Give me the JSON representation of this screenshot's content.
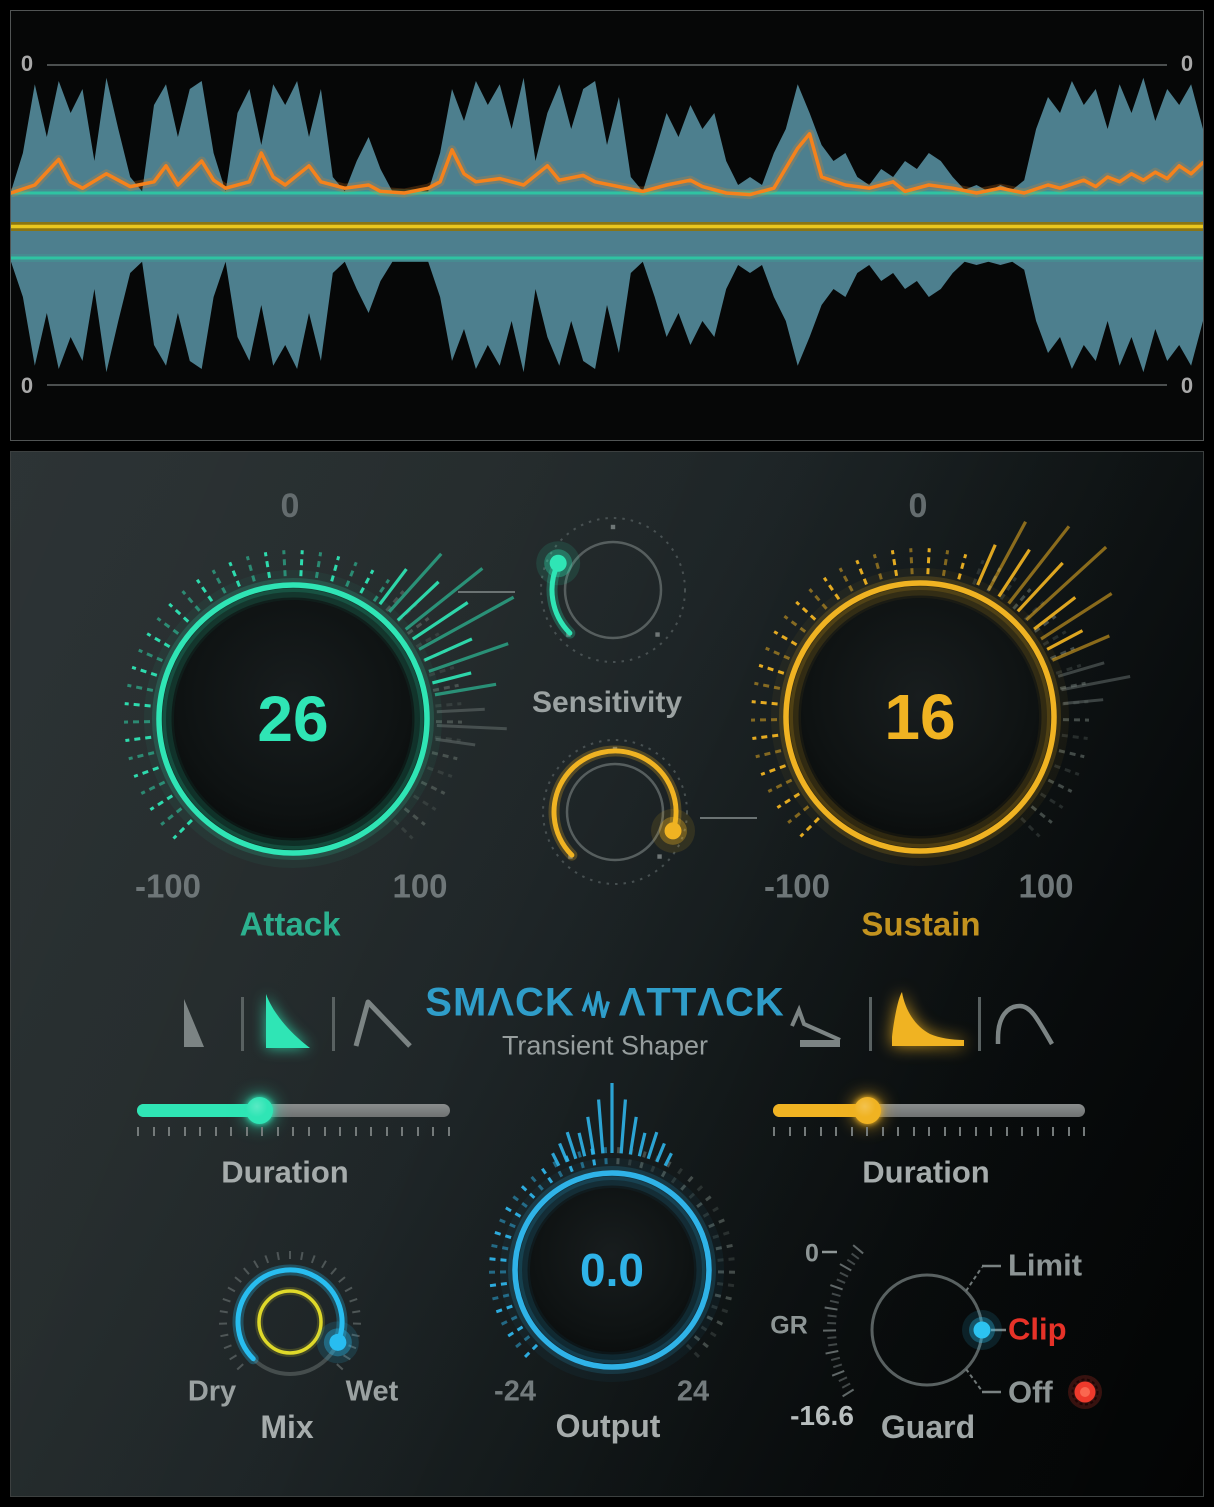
{
  "branding": {
    "title_word1": "SMΛCK",
    "title_word2": "ΛTTΛCK",
    "subtitle": "Transient Shaper",
    "color": "#2f9dc9"
  },
  "waveform": {
    "zero_label": "0",
    "colors": {
      "fill": "#4d7f8e",
      "detector": "#f5821c",
      "threshold": "#2fc3a2",
      "center_line": "#e9c71f",
      "zero_line": "#4b4f4f"
    },
    "threshold_amp": 21,
    "envelope": [
      18,
      45,
      88,
      55,
      90,
      70,
      85,
      40,
      92,
      60,
      30,
      20,
      75,
      88,
      55,
      85,
      90,
      45,
      20,
      70,
      85,
      50,
      88,
      75,
      90,
      55,
      85,
      30,
      18,
      40,
      55,
      35,
      18,
      16,
      16,
      20,
      45,
      85,
      65,
      90,
      75,
      88,
      60,
      92,
      40,
      70,
      88,
      60,
      85,
      90,
      50,
      80,
      30,
      20,
      45,
      70,
      55,
      75,
      60,
      70,
      40,
      25,
      30,
      25,
      45,
      60,
      88,
      70,
      50,
      40,
      45,
      30,
      25,
      35,
      30,
      40,
      35,
      45,
      40,
      30,
      22,
      25,
      20,
      25,
      22,
      28,
      60,
      80,
      70,
      90,
      75,
      85,
      60,
      88,
      70,
      92,
      65,
      85,
      75,
      88,
      60
    ],
    "detector": [
      [
        0,
        20
      ],
      [
        2,
        25
      ],
      [
        4,
        41
      ],
      [
        5,
        27
      ],
      [
        6,
        23
      ],
      [
        8,
        32
      ],
      [
        10,
        24
      ],
      [
        12,
        27
      ],
      [
        13,
        37
      ],
      [
        14,
        25
      ],
      [
        16,
        40
      ],
      [
        17,
        28
      ],
      [
        18,
        23
      ],
      [
        20,
        27
      ],
      [
        21,
        45
      ],
      [
        22,
        30
      ],
      [
        23,
        25
      ],
      [
        25,
        37
      ],
      [
        26,
        27
      ],
      [
        28,
        23
      ],
      [
        30,
        25
      ],
      [
        31,
        21
      ],
      [
        33,
        20
      ],
      [
        35,
        23
      ],
      [
        36,
        27
      ],
      [
        37,
        47
      ],
      [
        38,
        32
      ],
      [
        39,
        27
      ],
      [
        41,
        29
      ],
      [
        43,
        25
      ],
      [
        45,
        37
      ],
      [
        46,
        28
      ],
      [
        48,
        31
      ],
      [
        49,
        27
      ],
      [
        51,
        24
      ],
      [
        53,
        21
      ],
      [
        55,
        25
      ],
      [
        57,
        28
      ],
      [
        58,
        24
      ],
      [
        60,
        20
      ],
      [
        62,
        19
      ],
      [
        64,
        23
      ],
      [
        66,
        48
      ],
      [
        67,
        57
      ],
      [
        68,
        30
      ],
      [
        70,
        25
      ],
      [
        72,
        23
      ],
      [
        74,
        27
      ],
      [
        75,
        21
      ],
      [
        77,
        25
      ],
      [
        79,
        23
      ],
      [
        81,
        20
      ],
      [
        83,
        23
      ],
      [
        85,
        20
      ],
      [
        87,
        25
      ],
      [
        88,
        23
      ],
      [
        90,
        28
      ],
      [
        91,
        24
      ],
      [
        92,
        30
      ],
      [
        93,
        27
      ],
      [
        94,
        32
      ],
      [
        95,
        28
      ],
      [
        96,
        33
      ],
      [
        97,
        29
      ],
      [
        98,
        37
      ],
      [
        99,
        32
      ],
      [
        100,
        39
      ]
    ]
  },
  "controls": {
    "attack": {
      "label": "Attack",
      "value": "26",
      "value_num": 26,
      "min": -100,
      "max": 100,
      "min_label": "-100",
      "max_label": "100",
      "zero_label": "0",
      "accent": "#2fe5b5"
    },
    "sustain": {
      "label": "Sustain",
      "value": "16",
      "value_num": 16,
      "min": -100,
      "max": 100,
      "min_label": "-100",
      "max_label": "100",
      "zero_label": "0",
      "accent": "#f0b322"
    },
    "sensitivity": {
      "label": "Sensitivity",
      "attack_pointer_deg": -64,
      "sustain_pointer_deg": 108
    },
    "attack_shape": {
      "options": [
        "sharp",
        "medium",
        "soft"
      ],
      "selected_index": 1
    },
    "sustain_shape": {
      "options": [
        "linear",
        "exponential",
        "curved"
      ],
      "selected_index": 1
    },
    "attack_duration": {
      "label": "Duration",
      "fraction": 0.39
    },
    "sustain_duration": {
      "label": "Duration",
      "fraction": 0.3
    },
    "mix": {
      "label": "Mix",
      "dry_label": "Dry",
      "wet_label": "Wet",
      "pointer_deg": 113,
      "accent": "#28bdf0",
      "ring_color": "#dfd92a"
    },
    "output": {
      "label": "Output",
      "value": "0.0",
      "value_num": 0,
      "min": -24,
      "max": 24,
      "min_label": "-24",
      "max_label": "24",
      "accent": "#2fb3e8"
    },
    "guard": {
      "label": "Guard",
      "gr_label": "GR",
      "gr_zero_label": "0",
      "gr_value": "-16.6",
      "options": [
        "Limit",
        "Clip",
        "Off"
      ],
      "selected": "Clip",
      "pointer_deg": 90,
      "accent": "#2cc2f0",
      "selected_color": "#e63228",
      "led_color": "#ee3a2c"
    }
  }
}
